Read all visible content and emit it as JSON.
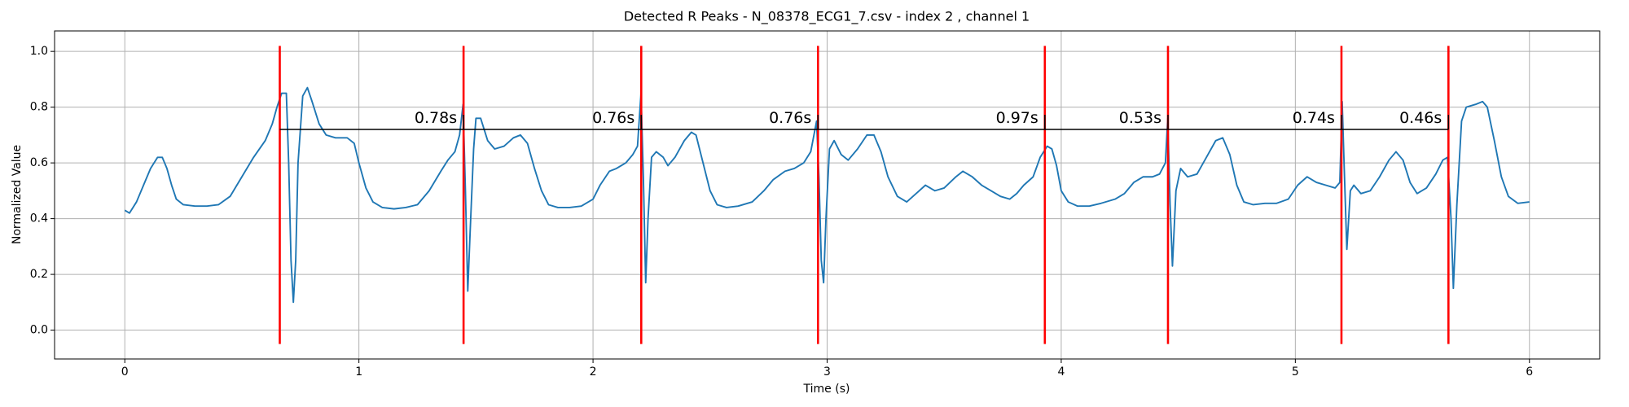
{
  "chart_data": {
    "type": "line",
    "title": "Detected R Peaks - N_08378_ECG1_7.csv - index 2 , channel 1",
    "xlabel": "Time (s)",
    "ylabel": "Normalized Value",
    "color": "#1f77b4",
    "x": [
      0,
      0.02,
      0.05,
      0.08,
      0.11,
      0.14,
      0.16,
      0.18,
      0.2,
      0.22,
      0.25,
      0.3,
      0.35,
      0.4,
      0.45,
      0.5,
      0.55,
      0.6,
      0.63,
      0.65,
      0.67,
      0.69,
      0.7,
      0.71,
      0.72,
      0.73,
      0.74,
      0.76,
      0.78,
      0.8,
      0.83,
      0.86,
      0.9,
      0.95,
      0.98,
      1.0,
      1.03,
      1.06,
      1.1,
      1.15,
      1.2,
      1.25,
      1.3,
      1.35,
      1.38,
      1.41,
      1.43,
      1.445,
      1.455,
      1.465,
      1.475,
      1.49,
      1.5,
      1.52,
      1.55,
      1.58,
      1.62,
      1.66,
      1.69,
      1.72,
      1.75,
      1.78,
      1.81,
      1.85,
      1.9,
      1.95,
      2.0,
      2.03,
      2.07,
      2.1,
      2.14,
      2.17,
      2.19,
      2.205,
      2.215,
      2.225,
      2.235,
      2.25,
      2.27,
      2.3,
      2.32,
      2.35,
      2.39,
      2.42,
      2.44,
      2.47,
      2.5,
      2.53,
      2.57,
      2.62,
      2.68,
      2.73,
      2.77,
      2.82,
      2.86,
      2.9,
      2.93,
      2.955,
      2.965,
      2.975,
      2.985,
      2.995,
      3.01,
      3.03,
      3.06,
      3.09,
      3.13,
      3.17,
      3.2,
      3.23,
      3.26,
      3.3,
      3.34,
      3.38,
      3.42,
      3.46,
      3.5,
      3.55,
      3.58,
      3.62,
      3.66,
      3.7,
      3.74,
      3.78,
      3.81,
      3.84,
      3.88,
      3.91,
      3.94,
      3.96,
      3.98,
      4.0,
      4.03,
      4.07,
      4.12,
      4.17,
      4.23,
      4.27,
      4.31,
      4.35,
      4.39,
      4.42,
      4.445,
      4.455,
      4.465,
      4.475,
      4.49,
      4.51,
      4.54,
      4.58,
      4.62,
      4.66,
      4.69,
      4.72,
      4.75,
      4.78,
      4.82,
      4.87,
      4.92,
      4.97,
      5.01,
      5.05,
      5.09,
      5.13,
      5.17,
      5.19,
      5.2,
      5.21,
      5.22,
      5.235,
      5.25,
      5.28,
      5.32,
      5.36,
      5.4,
      5.43,
      5.46,
      5.49,
      5.52,
      5.56,
      5.6,
      5.63,
      5.65,
      5.665,
      5.675,
      5.69,
      5.71,
      5.73,
      5.77,
      5.8,
      5.82,
      5.85,
      5.88,
      5.91,
      5.95,
      6.0
    ],
    "values": [
      0.43,
      0.42,
      0.46,
      0.52,
      0.58,
      0.62,
      0.62,
      0.58,
      0.52,
      0.47,
      0.45,
      0.445,
      0.445,
      0.45,
      0.48,
      0.55,
      0.62,
      0.68,
      0.74,
      0.8,
      0.85,
      0.85,
      0.6,
      0.25,
      0.1,
      0.25,
      0.6,
      0.84,
      0.87,
      0.82,
      0.74,
      0.7,
      0.69,
      0.69,
      0.67,
      0.6,
      0.51,
      0.46,
      0.44,
      0.435,
      0.44,
      0.45,
      0.5,
      0.57,
      0.61,
      0.64,
      0.7,
      0.81,
      0.5,
      0.14,
      0.35,
      0.65,
      0.76,
      0.76,
      0.68,
      0.65,
      0.66,
      0.69,
      0.7,
      0.67,
      0.58,
      0.5,
      0.45,
      0.44,
      0.44,
      0.445,
      0.47,
      0.52,
      0.57,
      0.58,
      0.6,
      0.63,
      0.66,
      0.85,
      0.55,
      0.17,
      0.4,
      0.62,
      0.64,
      0.62,
      0.59,
      0.62,
      0.68,
      0.71,
      0.7,
      0.6,
      0.5,
      0.45,
      0.44,
      0.445,
      0.46,
      0.5,
      0.54,
      0.57,
      0.58,
      0.6,
      0.64,
      0.75,
      0.55,
      0.25,
      0.17,
      0.4,
      0.65,
      0.68,
      0.63,
      0.61,
      0.65,
      0.7,
      0.7,
      0.64,
      0.55,
      0.48,
      0.46,
      0.49,
      0.52,
      0.5,
      0.51,
      0.55,
      0.57,
      0.55,
      0.52,
      0.5,
      0.48,
      0.47,
      0.49,
      0.52,
      0.55,
      0.62,
      0.66,
      0.65,
      0.59,
      0.5,
      0.46,
      0.445,
      0.445,
      0.455,
      0.47,
      0.49,
      0.53,
      0.55,
      0.55,
      0.56,
      0.6,
      0.76,
      0.45,
      0.23,
      0.5,
      0.58,
      0.55,
      0.56,
      0.62,
      0.68,
      0.69,
      0.63,
      0.52,
      0.46,
      0.45,
      0.455,
      0.455,
      0.47,
      0.52,
      0.55,
      0.53,
      0.52,
      0.51,
      0.53,
      0.82,
      0.55,
      0.29,
      0.5,
      0.52,
      0.49,
      0.5,
      0.55,
      0.61,
      0.64,
      0.61,
      0.53,
      0.49,
      0.51,
      0.56,
      0.61,
      0.62,
      0.4,
      0.15,
      0.45,
      0.75,
      0.8,
      0.81,
      0.82,
      0.8,
      0.68,
      0.55,
      0.48,
      0.455,
      0.46
    ],
    "peaks": [
      0.662,
      1.447,
      2.206,
      2.961,
      3.93,
      4.456,
      5.197,
      5.654
    ],
    "peak_color": "#ff0000",
    "peak_line_range": [
      -0.05,
      1.02
    ],
    "interval_line_y": 0.72,
    "interval_color": "#000000",
    "intervals": {
      "values": [
        0.78,
        0.76,
        0.76,
        0.97,
        0.53,
        0.74,
        0.46
      ],
      "value_labels": [
        "0.78s",
        "0.76s",
        "0.76s",
        "0.97s",
        "0.53s",
        "0.74s",
        "0.46s"
      ]
    },
    "xlim": [
      -0.3,
      6.3
    ],
    "ylim": [
      -0.1035,
      1.0735
    ],
    "xticks": [
      0,
      1,
      2,
      3,
      4,
      5,
      6
    ],
    "yticks": [
      {
        "value": 0,
        "label": "0.0"
      },
      0.2,
      0.4,
      0.6,
      0.8,
      {
        "value": 1,
        "label": "1.0"
      }
    ],
    "grid": true
  }
}
